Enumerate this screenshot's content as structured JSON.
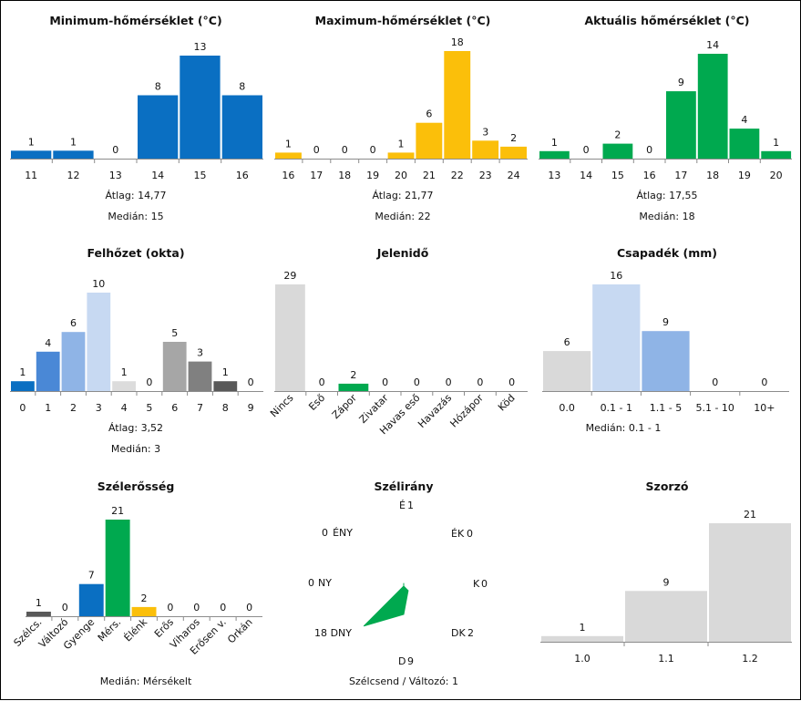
{
  "chart_data": [
    {
      "id": "min",
      "type": "bar",
      "title": "Minimum-hőmérséklet (°C)",
      "categories": [
        "11",
        "12",
        "13",
        "14",
        "15",
        "16"
      ],
      "values": [
        1,
        1,
        0,
        8,
        13,
        8
      ],
      "colors": [
        "#0a6fc2"
      ],
      "stats": [
        "Átlag: 14,77",
        "Medián: 15"
      ]
    },
    {
      "id": "max",
      "type": "bar",
      "title": "Maximum-hőmérséklet (°C)",
      "categories": [
        "16",
        "17",
        "18",
        "19",
        "20",
        "21",
        "22",
        "23",
        "24"
      ],
      "values": [
        1,
        0,
        0,
        0,
        1,
        6,
        18,
        3,
        2
      ],
      "colors": [
        "#fbbf0a"
      ],
      "stats": [
        "Átlag: 21,77",
        "Medián: 22"
      ]
    },
    {
      "id": "akt",
      "type": "bar",
      "title": "Aktuális hőmérséklet (°C)",
      "categories": [
        "13",
        "14",
        "15",
        "16",
        "17",
        "18",
        "19",
        "20"
      ],
      "values": [
        1,
        0,
        2,
        0,
        9,
        14,
        4,
        1
      ],
      "colors": [
        "#00a94f"
      ],
      "stats": [
        "Átlag: 17,55",
        "Medián: 18"
      ]
    },
    {
      "id": "felho",
      "type": "bar",
      "title": "Felhőzet (okta)",
      "categories": [
        "0",
        "1",
        "2",
        "3",
        "4",
        "5",
        "6",
        "7",
        "8",
        "9"
      ],
      "values": [
        1,
        4,
        6,
        10,
        1,
        0,
        5,
        3,
        1,
        0
      ],
      "colors": [
        "#0a6fc2",
        "#4a88d6",
        "#8fb4e6",
        "#c7d9f2",
        "#dcdcdc",
        "#dcdcdc",
        "#a6a6a6",
        "#808080",
        "#595959",
        "#595959"
      ],
      "stats": [
        "Átlag: 3,52",
        "Medián: 3"
      ]
    },
    {
      "id": "jelen",
      "type": "bar",
      "title": "Jelenidő",
      "categories": [
        "Nincs",
        "Eső",
        "Zápor",
        "Zivatar",
        "Havas eső",
        "Havazás",
        "Hózápor",
        "Köd"
      ],
      "values": [
        29,
        0,
        2,
        0,
        0,
        0,
        0,
        0
      ],
      "colors": [
        "#d9d9d9",
        "#d9d9d9",
        "#00a94f",
        "#d9d9d9",
        "#d9d9d9",
        "#d9d9d9",
        "#d9d9d9",
        "#d9d9d9"
      ],
      "stats": []
    },
    {
      "id": "csap",
      "type": "bar",
      "title": "Csapadék (mm)",
      "categories": [
        "0.0",
        "0.1 - 1",
        "1.1 - 5",
        "5.1 - 10",
        "10+"
      ],
      "values": [
        6,
        16,
        9,
        0,
        0
      ],
      "colors": [
        "#d9d9d9",
        "#c7d9f2",
        "#8fb4e6",
        "#4a88d6",
        "#0a6fc2"
      ],
      "stats": [
        "Medián: 0.1 - 1"
      ]
    },
    {
      "id": "szel",
      "type": "bar",
      "title": "Szélerősség",
      "categories": [
        "Szélcs.",
        "Változó",
        "Gyenge",
        "Mérs.",
        "Élénk",
        "Erős",
        "Viharos",
        "Erősen v.",
        "Orkán"
      ],
      "values": [
        1,
        0,
        7,
        21,
        2,
        0,
        0,
        0,
        0
      ],
      "colors": [
        "#595959",
        "#595959",
        "#0a6fc2",
        "#00a94f",
        "#fbbf0a",
        "#d9d9d9",
        "#d9d9d9",
        "#d9d9d9",
        "#d9d9d9"
      ],
      "stats": [
        "Medián: Mérsékelt"
      ]
    },
    {
      "id": "irany",
      "type": "radar",
      "title": "Szélirány",
      "directions": [
        "É",
        "ÉK",
        "K",
        "DK",
        "D",
        "DNY",
        "NY",
        "ÉNY"
      ],
      "values": [
        1,
        0,
        0,
        2,
        9,
        18,
        0,
        0
      ],
      "color": "#00a94f",
      "stats": [
        "Szélcsend / Változó: 1"
      ]
    },
    {
      "id": "szorzo",
      "type": "bar",
      "title": "Szorzó",
      "categories": [
        "1.0",
        "1.1",
        "1.2"
      ],
      "values": [
        1,
        9,
        21
      ],
      "colors": [
        "#d9d9d9"
      ],
      "stats": []
    }
  ]
}
